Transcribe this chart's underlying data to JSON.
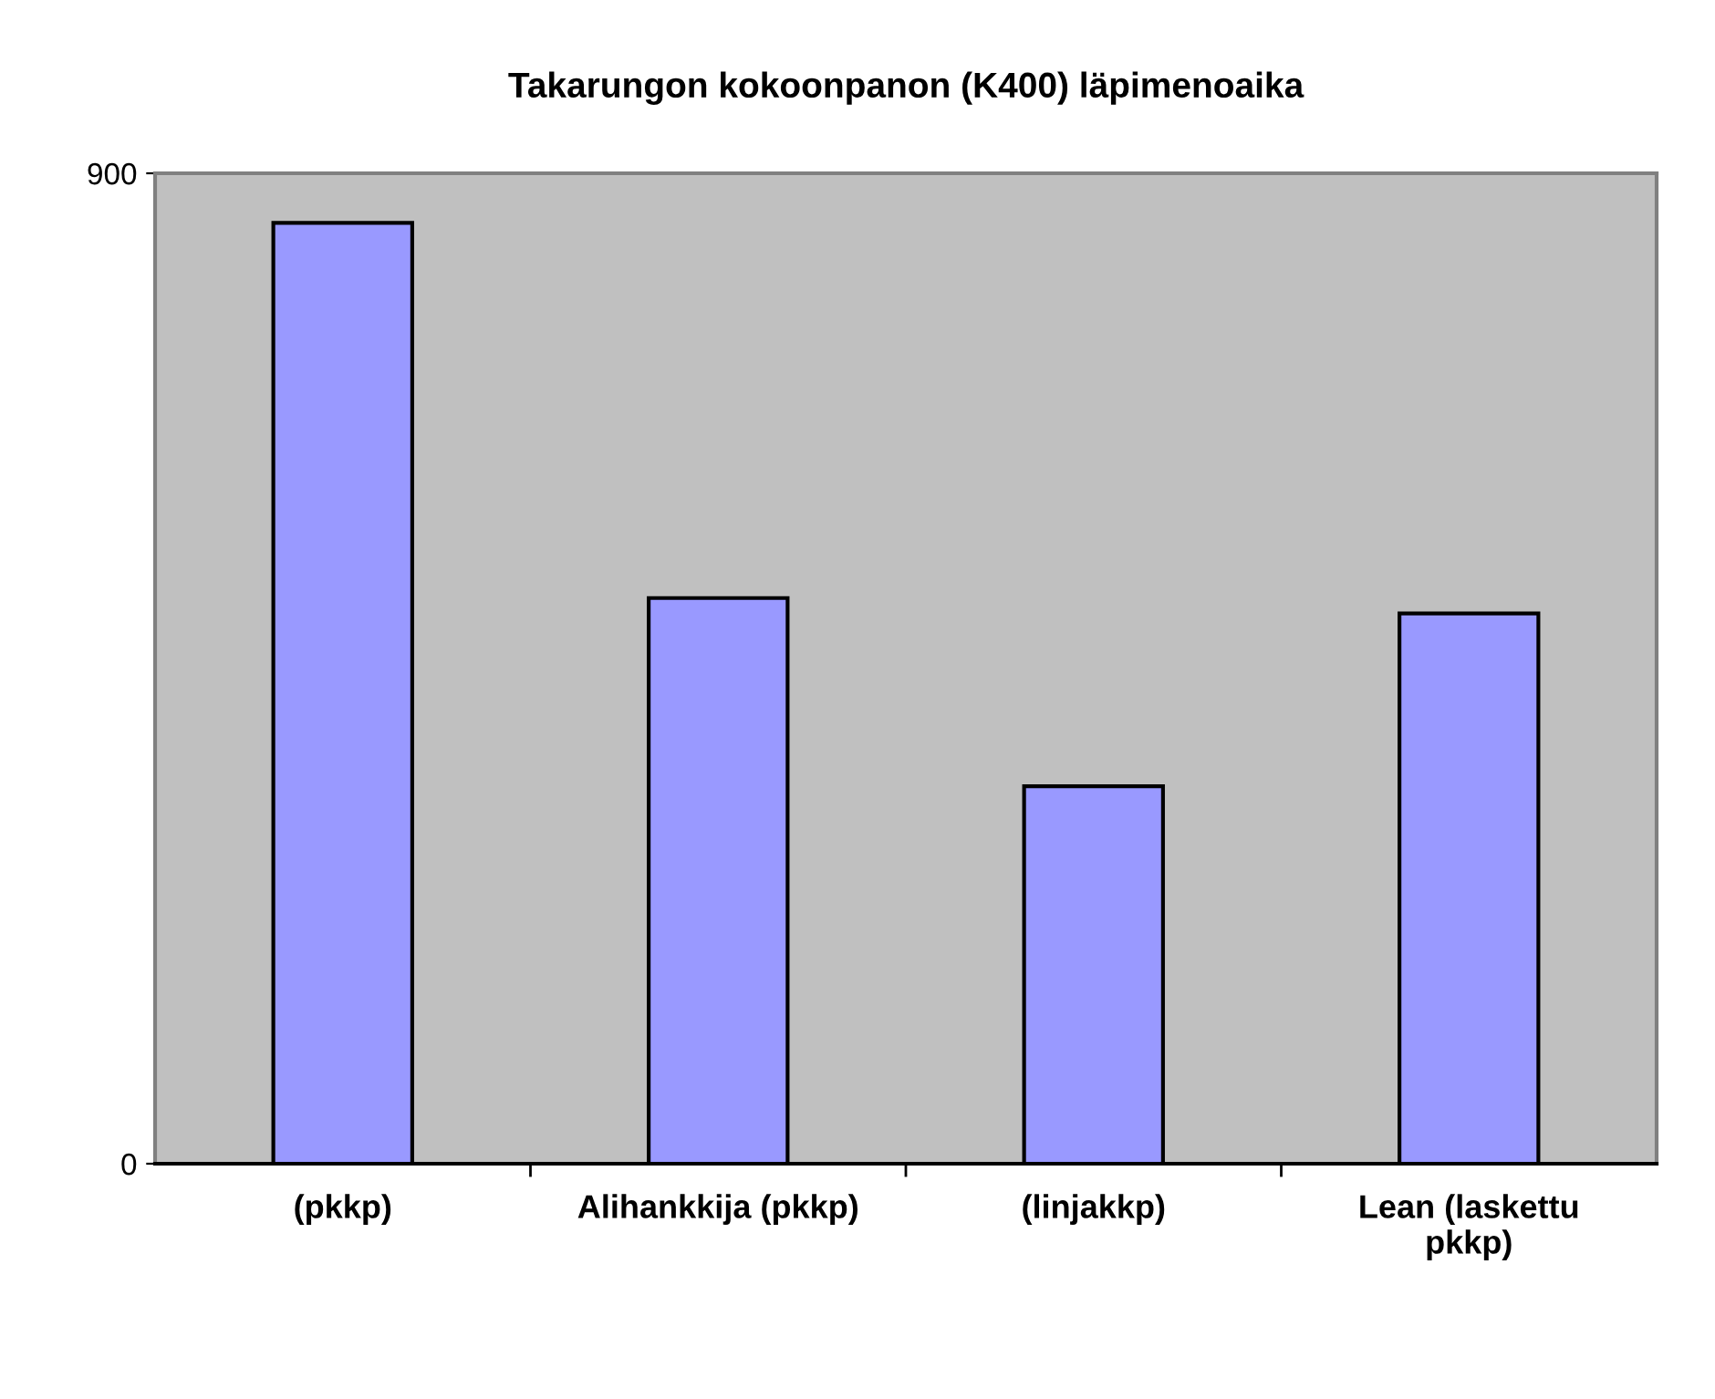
{
  "chart_data": {
    "type": "bar",
    "title": "Takarungon kokoonpanon (K400) läpimenoaika",
    "categories": [
      "(pkkp)",
      "Alihankkija (pkkp)",
      "(linjakkp)",
      "Lean (laskettu\npkkp)"
    ],
    "values": [
      855,
      514,
      343,
      500
    ],
    "color": "#9999ff",
    "ylim": [
      0,
      900
    ],
    "yticks": [
      0,
      900
    ],
    "grid": false,
    "legend": false
  }
}
